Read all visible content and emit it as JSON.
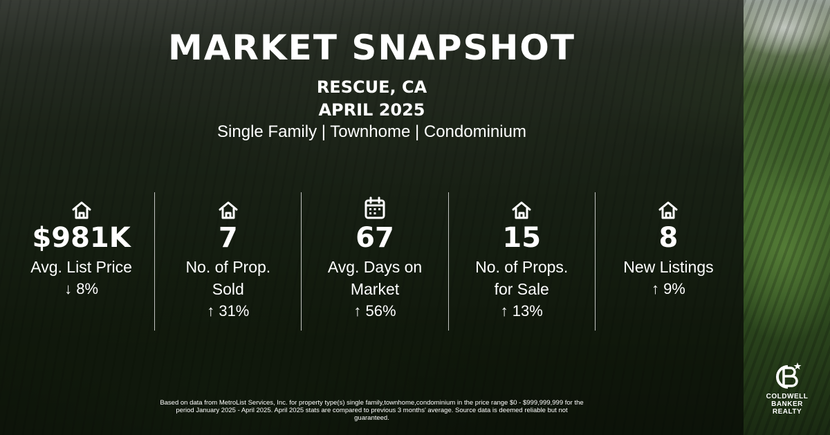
{
  "header": {
    "title": "MARKET SNAPSHOT",
    "location": "RESCUE, CA",
    "period": "APRIL 2025",
    "property_types": "Single Family | Townhome | Condominium"
  },
  "stats": [
    {
      "icon": "house-icon",
      "value": "$981K",
      "label": "Avg. List Price",
      "change": "↓ 8%"
    },
    {
      "icon": "house-icon",
      "value": "7",
      "label_line1": "No. of Prop.",
      "label_line2": "Sold",
      "change": "↑ 31%"
    },
    {
      "icon": "calendar-icon",
      "value": "67",
      "label_line1": "Avg. Days on",
      "label_line2": "Market",
      "change": "↑ 56%"
    },
    {
      "icon": "house-icon",
      "value": "15",
      "label_line1": "No. of Props.",
      "label_line2": "for Sale",
      "change": "↑ 13%"
    },
    {
      "icon": "house-icon",
      "value": "8",
      "label": "New Listings",
      "change": "↑ 9%"
    }
  ],
  "disclaimer": "Based on data from MetroList Services, Inc. for property type(s) single family,townhome,condominium in the price range $0 - $999,999,999 for the period January 2025 - April 2025. April 2025 stats are compared to previous 3 months' average. Source data is deemed reliable but not guaranteed.",
  "logo": {
    "line1": "COLDWELL",
    "line2": "BANKER",
    "line3": "REALTY"
  },
  "colors": {
    "text": "#ffffff",
    "overlay": "#000000"
  }
}
